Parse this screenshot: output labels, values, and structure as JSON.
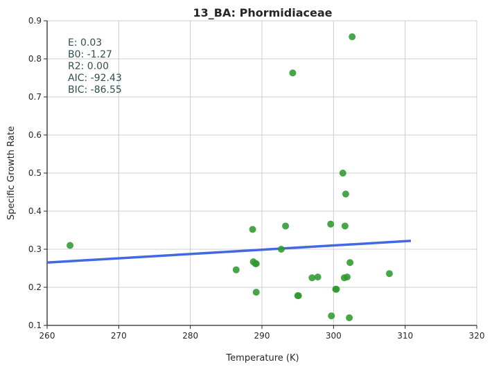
{
  "chart_data": {
    "type": "scatter",
    "title": "13_BA: Phormidiaceae",
    "xlabel": "Temperature (K)",
    "ylabel": "Specific Growth Rate",
    "xlim": [
      260,
      320
    ],
    "ylim": [
      0.1,
      0.9
    ],
    "xticks": [
      "260",
      "270",
      "280",
      "290",
      "300",
      "310",
      "320"
    ],
    "yticks": [
      "0.1",
      "0.2",
      "0.3",
      "0.4",
      "0.5",
      "0.6",
      "0.7",
      "0.8",
      "0.9"
    ],
    "grid": true,
    "point_color": "#2e9a2e",
    "line_color": "#4169e1",
    "text_color": "#2f4f4f",
    "points": [
      {
        "x": 263.2,
        "y": 0.31
      },
      {
        "x": 286.4,
        "y": 0.246
      },
      {
        "x": 288.7,
        "y": 0.352
      },
      {
        "x": 288.8,
        "y": 0.267
      },
      {
        "x": 289.1,
        "y": 0.262
      },
      {
        "x": 289.2,
        "y": 0.262
      },
      {
        "x": 289.2,
        "y": 0.187
      },
      {
        "x": 292.7,
        "y": 0.3
      },
      {
        "x": 293.3,
        "y": 0.361
      },
      {
        "x": 294.3,
        "y": 0.763
      },
      {
        "x": 295.0,
        "y": 0.178
      },
      {
        "x": 295.1,
        "y": 0.178
      },
      {
        "x": 297.0,
        "y": 0.225
      },
      {
        "x": 297.8,
        "y": 0.227
      },
      {
        "x": 299.6,
        "y": 0.366
      },
      {
        "x": 299.7,
        "y": 0.125
      },
      {
        "x": 300.3,
        "y": 0.195
      },
      {
        "x": 300.4,
        "y": 0.195
      },
      {
        "x": 301.3,
        "y": 0.5
      },
      {
        "x": 301.5,
        "y": 0.225
      },
      {
        "x": 301.6,
        "y": 0.361
      },
      {
        "x": 301.7,
        "y": 0.445
      },
      {
        "x": 301.9,
        "y": 0.227
      },
      {
        "x": 302.2,
        "y": 0.12
      },
      {
        "x": 302.3,
        "y": 0.265
      },
      {
        "x": 302.6,
        "y": 0.858
      },
      {
        "x": 307.8,
        "y": 0.236
      }
    ],
    "fit_line": {
      "x": [
        260,
        310.8
      ],
      "y": [
        0.265,
        0.322
      ]
    },
    "stats": [
      "E:  0.03",
      "B0:  -1.27",
      "R2:  0.00",
      "AIC: -92.43",
      "BIC: -86.55"
    ]
  }
}
